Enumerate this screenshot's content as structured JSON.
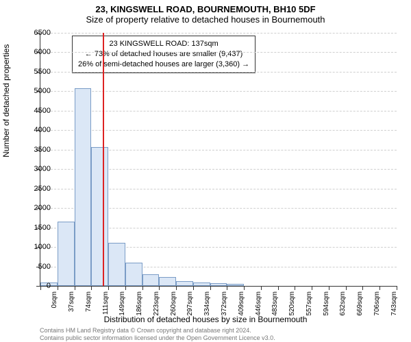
{
  "title_main": "23, KINGSWELL ROAD, BOURNEMOUTH, BH10 5DF",
  "title_sub": "Size of property relative to detached houses in Bournemouth",
  "y_axis_title": "Number of detached properties",
  "x_axis_title": "Distribution of detached houses by size in Bournemouth",
  "chart": {
    "type": "histogram",
    "x_categories": [
      "0sqm",
      "37sqm",
      "74sqm",
      "111sqm",
      "149sqm",
      "186sqm",
      "223sqm",
      "260sqm",
      "297sqm",
      "334sqm",
      "372sqm",
      "409sqm",
      "446sqm",
      "483sqm",
      "520sqm",
      "557sqm",
      "594sqm",
      "632sqm",
      "669sqm",
      "706sqm",
      "743sqm"
    ],
    "values": [
      80,
      1650,
      5080,
      3570,
      1100,
      600,
      300,
      220,
      120,
      90,
      70,
      60,
      0,
      0,
      0,
      0,
      0,
      0,
      0,
      0,
      0
    ],
    "bar_fill": "#dbe7f6",
    "bar_border": "#7a9cc6",
    "ylim": [
      0,
      6500
    ],
    "ytick_step": 500,
    "grid_color": "#cfcfcf",
    "background_color": "#ffffff",
    "title_fontsize": 13,
    "label_fontsize": 11,
    "tick_fontsize": 10
  },
  "reference_line": {
    "x_value": 137,
    "x_max": 780,
    "color": "#d22"
  },
  "annotation": {
    "line1": "23 KINGSWELL ROAD: 137sqm",
    "line2": "← 73% of detached houses are smaller (9,437)",
    "line3": "26% of semi-detached houses are larger (3,360) →"
  },
  "footer": {
    "line1": "Contains HM Land Registry data © Crown copyright and database right 2024.",
    "line2": "Contains public sector information licensed under the Open Government Licence v3.0."
  }
}
